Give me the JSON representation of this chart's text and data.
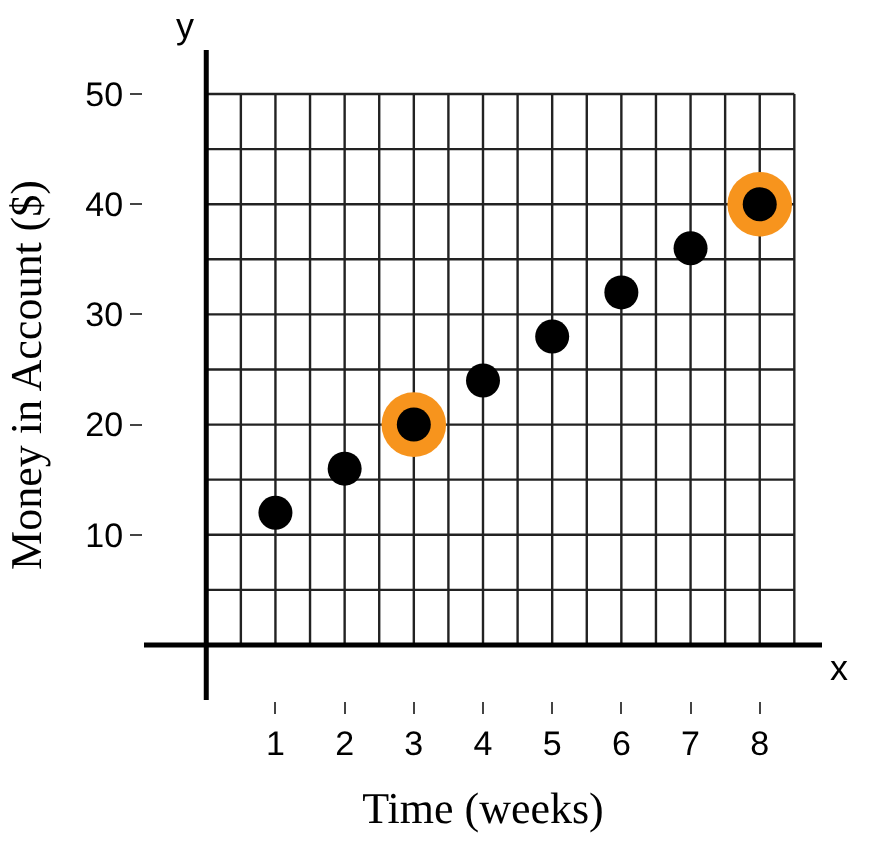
{
  "chart_data": {
    "type": "scatter",
    "xlabel": "Time (weeks)",
    "ylabel": "Money in Account ($)",
    "x": [
      1,
      2,
      3,
      4,
      5,
      6,
      7,
      8
    ],
    "series": [
      {
        "color": "#f7941d",
        "x": [
          3,
          8
        ],
        "values": [
          20,
          40
        ]
      },
      {
        "color": "#000000",
        "values": [
          12,
          16,
          20,
          24,
          28,
          32,
          36,
          40
        ]
      }
    ],
    "xlim": [
      -0.9,
      8.9
    ],
    "ylim": [
      -5,
      54
    ],
    "xticks": [
      1,
      2,
      3,
      4,
      5,
      6,
      7,
      8
    ],
    "yticks": [
      10,
      20,
      30,
      40,
      50
    ],
    "grid": true,
    "marker": "circle",
    "annotations": [
      "x",
      "y"
    ]
  }
}
